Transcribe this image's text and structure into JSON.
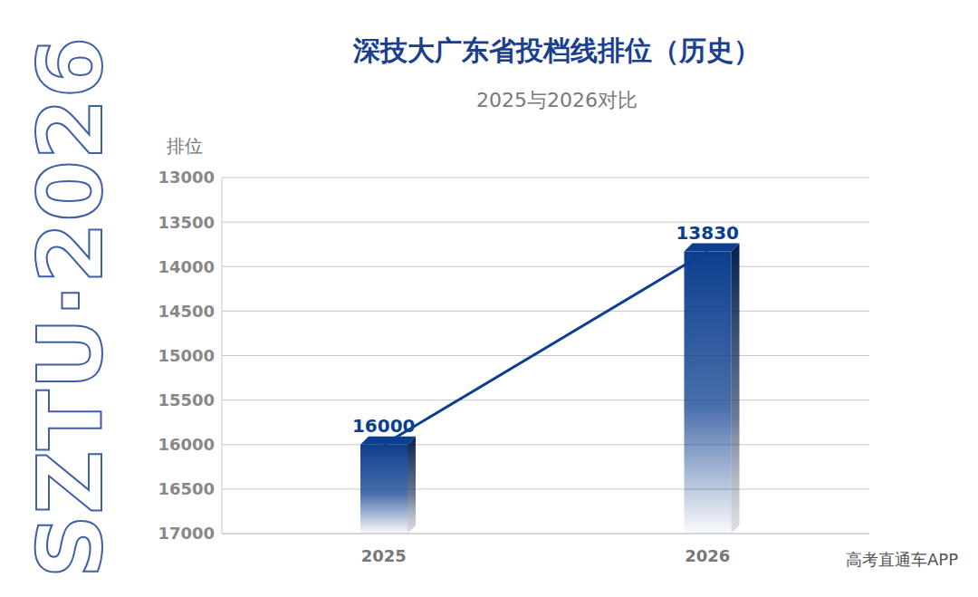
{
  "chart_data": {
    "type": "bar",
    "title": "深技大广东省投档线排位（历史）",
    "subtitle": "2025与2026对比",
    "y_label": "排位",
    "side_text": "SZTU·2026",
    "source": "高考直通车APP",
    "categories": [
      "2025",
      "2026"
    ],
    "values": [
      16000,
      13830
    ],
    "color": "#0d3f8f",
    "ylim": [
      17000,
      13000
    ],
    "yticks": [
      13000,
      13500,
      14000,
      14500,
      15000,
      15500,
      16000,
      16500,
      17000
    ],
    "grid": true,
    "data_labels": true,
    "line_style": "solid"
  }
}
